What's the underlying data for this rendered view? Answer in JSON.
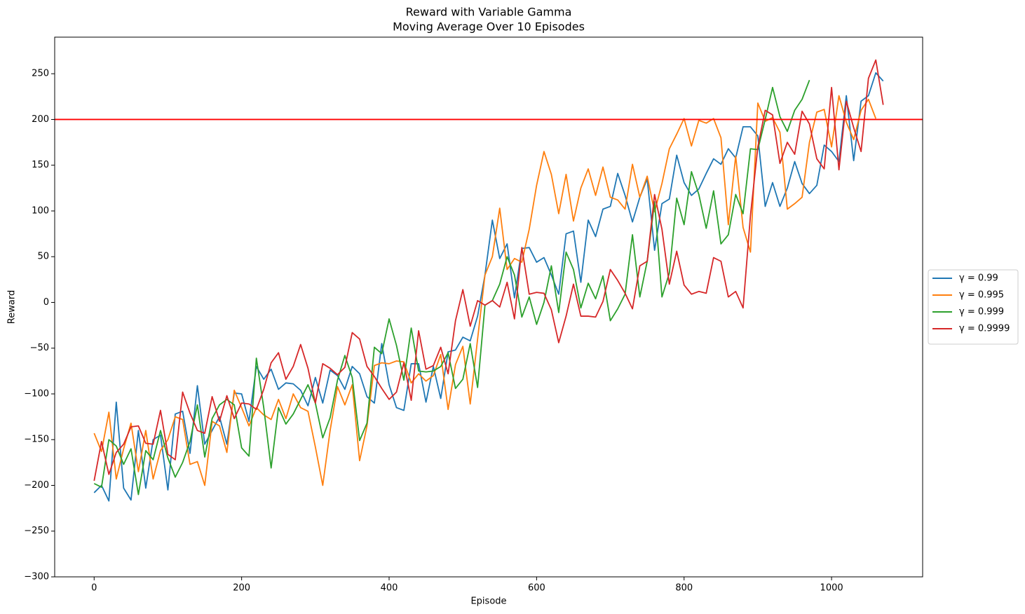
{
  "chart_data": {
    "type": "line",
    "title": "Reward with Variable Gamma",
    "subtitle": "Moving Average Over 10 Episodes",
    "xlabel": "Episode",
    "ylabel": "Reward",
    "xlim": [
      -53.5,
      1123.5
    ],
    "ylim": [
      -300,
      290
    ],
    "xticks": [
      0,
      200,
      400,
      600,
      800,
      1000
    ],
    "yticks": [
      {
        "value": -300,
        "label": "−300"
      },
      {
        "value": -250,
        "label": "−250"
      },
      {
        "value": -200,
        "label": "−200"
      },
      {
        "value": -150,
        "label": "−150"
      },
      {
        "value": -100,
        "label": "−100"
      },
      {
        "value": -50,
        "label": "−50"
      },
      0,
      50,
      100,
      150,
      200,
      250
    ],
    "legend": "right",
    "reference_line": {
      "value": 200,
      "color": "#ff0000"
    },
    "series": [
      {
        "name": "γ = 0.99",
        "color": "#1f77b4",
        "x": [
          0,
          10,
          20,
          30,
          40,
          50,
          60,
          70,
          80,
          90,
          100,
          110,
          120,
          130,
          140,
          150,
          160,
          170,
          180,
          190,
          200,
          210,
          220,
          230,
          240,
          250,
          260,
          270,
          280,
          290,
          300,
          310,
          320,
          330,
          340,
          350,
          360,
          370,
          380,
          390,
          400,
          410,
          420,
          430,
          440,
          450,
          460,
          470,
          480,
          490,
          500,
          510,
          520,
          530,
          540,
          550,
          560,
          570,
          580,
          590,
          600,
          610,
          620,
          630,
          640,
          650,
          660,
          670,
          680,
          690,
          700,
          710,
          720,
          730,
          740,
          750,
          760,
          770,
          780,
          790,
          800,
          810,
          820,
          830,
          840,
          850,
          860,
          870,
          880,
          890,
          900,
          910,
          920,
          930,
          940,
          950,
          960,
          970,
          980,
          990,
          1000,
          1010,
          1020,
          1030,
          1040,
          1050,
          1060,
          1070
        ],
        "values": [
          -208,
          -200,
          -217,
          -109,
          -203,
          -216,
          -140,
          -203,
          -150,
          -145,
          -205,
          -122,
          -119,
          -165,
          -91,
          -155,
          -140,
          -125,
          -155,
          -99,
          -100,
          -130,
          -70,
          -84,
          -73,
          -95,
          -88,
          -89,
          -96,
          -113,
          -82,
          -110,
          -74,
          -80,
          -95,
          -70,
          -78,
          -103,
          -110,
          -45,
          -90,
          -115,
          -118,
          -67,
          -67,
          -109,
          -70,
          -105,
          -54,
          -52,
          -38,
          -42,
          -15,
          30,
          90,
          48,
          64,
          5,
          59,
          60,
          44,
          49,
          30,
          9,
          75,
          78,
          22,
          90,
          72,
          102,
          105,
          141,
          117,
          88,
          115,
          135,
          57,
          108,
          113,
          161,
          131,
          117,
          124,
          141,
          157,
          151,
          168,
          158,
          192,
          192,
          182,
          105,
          131,
          105,
          125,
          154,
          130,
          119,
          128,
          172,
          165,
          154,
          226,
          155,
          220,
          226,
          251,
          242
        ]
      },
      {
        "name": "γ = 0.995",
        "color": "#ff7f0e",
        "x": [
          0,
          10,
          20,
          30,
          40,
          50,
          60,
          70,
          80,
          90,
          100,
          110,
          120,
          130,
          140,
          150,
          160,
          170,
          180,
          190,
          200,
          210,
          220,
          230,
          240,
          250,
          260,
          270,
          280,
          290,
          300,
          310,
          320,
          330,
          340,
          350,
          360,
          370,
          380,
          390,
          400,
          410,
          420,
          430,
          440,
          450,
          460,
          470,
          480,
          490,
          500,
          510,
          520,
          530,
          540,
          550,
          560,
          570,
          580,
          590,
          600,
          610,
          620,
          630,
          640,
          650,
          660,
          670,
          680,
          690,
          700,
          710,
          720,
          730,
          740,
          750,
          760,
          770,
          780,
          790,
          800,
          810,
          820,
          830,
          840,
          850,
          860,
          870,
          880,
          890,
          900,
          910,
          920,
          930,
          940,
          950,
          960,
          970,
          980,
          990,
          1000,
          1010,
          1020,
          1030,
          1040,
          1050,
          1060
        ],
        "values": [
          -143,
          -163,
          -120,
          -193,
          -160,
          -132,
          -185,
          -140,
          -193,
          -162,
          -150,
          -125,
          -128,
          -177,
          -174,
          -200,
          -130,
          -135,
          -164,
          -96,
          -115,
          -135,
          -115,
          -123,
          -128,
          -106,
          -127,
          -100,
          -115,
          -119,
          -158,
          -200,
          -140,
          -92,
          -112,
          -90,
          -173,
          -135,
          -69,
          -66,
          -67,
          -64,
          -65,
          -88,
          -78,
          -86,
          -80,
          -57,
          -117,
          -68,
          -48,
          -111,
          -40,
          30,
          50,
          103,
          36,
          48,
          44,
          80,
          128,
          165,
          140,
          97,
          140,
          89,
          125,
          146,
          117,
          148,
          115,
          112,
          102,
          151,
          115,
          138,
          99,
          130,
          168,
          184,
          201,
          171,
          199,
          196,
          201,
          180,
          85,
          160,
          82,
          55,
          218,
          198,
          202,
          186,
          102,
          108,
          115,
          175,
          208,
          211,
          170,
          226,
          197,
          178,
          210,
          222,
          201
        ]
      },
      {
        "name": "γ = 0.999",
        "color": "#2ca02c",
        "x": [
          0,
          10,
          20,
          30,
          40,
          50,
          60,
          70,
          80,
          90,
          100,
          110,
          120,
          130,
          140,
          150,
          160,
          170,
          180,
          190,
          200,
          210,
          220,
          230,
          240,
          250,
          260,
          270,
          280,
          290,
          300,
          310,
          320,
          330,
          340,
          350,
          360,
          370,
          380,
          390,
          400,
          410,
          420,
          430,
          440,
          450,
          460,
          470,
          480,
          490,
          500,
          510,
          520,
          530,
          540,
          550,
          560,
          570,
          580,
          590,
          600,
          610,
          620,
          630,
          640,
          650,
          660,
          670,
          680,
          690,
          700,
          710,
          720,
          730,
          740,
          750,
          760,
          770,
          780,
          790,
          800,
          810,
          820,
          830,
          840,
          850,
          860,
          870,
          880,
          890,
          900,
          910,
          920,
          930,
          940,
          950,
          960,
          970
        ],
        "values": [
          -198,
          -202,
          -150,
          -157,
          -177,
          -160,
          -210,
          -162,
          -172,
          -140,
          -170,
          -191,
          -175,
          -152,
          -112,
          -169,
          -127,
          -112,
          -106,
          -112,
          -159,
          -168,
          -61,
          -115,
          -181,
          -115,
          -133,
          -122,
          -106,
          -90,
          -110,
          -148,
          -126,
          -85,
          -58,
          -82,
          -151,
          -132,
          -49,
          -56,
          -18,
          -47,
          -85,
          -28,
          -75,
          -76,
          -75,
          -70,
          -55,
          -94,
          -84,
          -45,
          -93,
          -3,
          2,
          20,
          50,
          30,
          -16,
          6,
          -24,
          0,
          40,
          -11,
          55,
          36,
          -6,
          21,
          4,
          29,
          -20,
          -7,
          9,
          74,
          6,
          45,
          110,
          6,
          32,
          114,
          85,
          143,
          118,
          81,
          122,
          64,
          74,
          118,
          97,
          168,
          167,
          200,
          235,
          203,
          187,
          210,
          222,
          243
        ]
      },
      {
        "name": "γ = 0.9999",
        "color": "#d62728",
        "x": [
          0,
          10,
          20,
          30,
          40,
          50,
          60,
          70,
          80,
          90,
          100,
          110,
          120,
          130,
          140,
          150,
          160,
          170,
          180,
          190,
          200,
          210,
          220,
          230,
          240,
          250,
          260,
          270,
          280,
          290,
          300,
          310,
          320,
          330,
          340,
          350,
          360,
          370,
          380,
          390,
          400,
          410,
          420,
          430,
          440,
          450,
          460,
          470,
          480,
          490,
          500,
          510,
          520,
          530,
          540,
          550,
          560,
          570,
          580,
          590,
          600,
          610,
          620,
          630,
          640,
          650,
          660,
          670,
          680,
          690,
          700,
          710,
          720,
          730,
          740,
          750,
          760,
          770,
          780,
          790,
          800,
          810,
          820,
          830,
          840,
          850,
          860,
          870,
          880,
          890,
          900,
          910,
          920,
          930,
          940,
          950,
          960,
          970,
          980,
          990,
          1000,
          1010,
          1020,
          1030,
          1040,
          1050,
          1060,
          1070
        ],
        "values": [
          -195,
          -152,
          -188,
          -164,
          -155,
          -136,
          -135,
          -154,
          -155,
          -118,
          -166,
          -172,
          -98,
          -121,
          -140,
          -143,
          -103,
          -130,
          -102,
          -127,
          -110,
          -111,
          -117,
          -95,
          -66,
          -55,
          -84,
          -70,
          -46,
          -72,
          -110,
          -67,
          -72,
          -79,
          -71,
          -33,
          -40,
          -70,
          -81,
          -94,
          -106,
          -98,
          -66,
          -107,
          -31,
          -73,
          -69,
          -49,
          -78,
          -20,
          14,
          -26,
          2,
          -3,
          2,
          -5,
          22,
          -18,
          60,
          9,
          11,
          10,
          -8,
          -44,
          -15,
          20,
          -15,
          -15,
          -16,
          1,
          36,
          24,
          10,
          -7,
          40,
          45,
          118,
          80,
          20,
          56,
          19,
          9,
          12,
          10,
          49,
          45,
          6,
          12,
          -6,
          95,
          170,
          210,
          205,
          152,
          175,
          162,
          209,
          195,
          157,
          146,
          235,
          145,
          220,
          191,
          165,
          245,
          265,
          216
        ]
      }
    ]
  }
}
